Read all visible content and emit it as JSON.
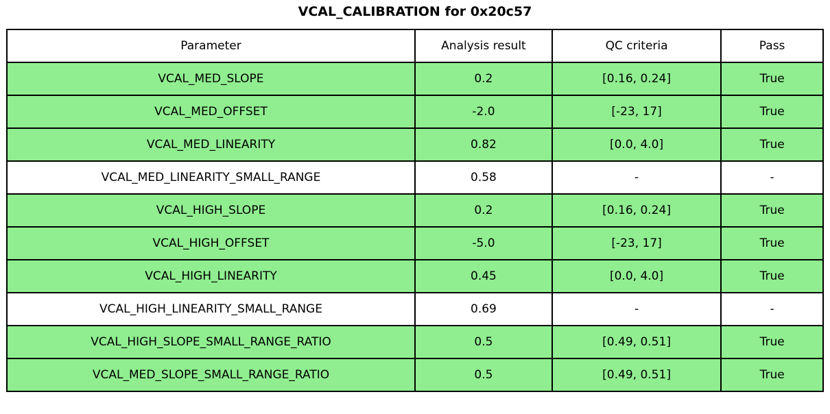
{
  "title": "VCAL_CALIBRATION for 0x20c57",
  "colors": {
    "pass_row_bg": "#90EE90",
    "neutral_row_bg": "#ffffff",
    "border": "#000000"
  },
  "table": {
    "columns": [
      "Parameter",
      "Analysis result",
      "QC criteria",
      "Pass"
    ],
    "rows": [
      {
        "parameter": "VCAL_MED_SLOPE",
        "result": "0.2",
        "criteria": "[0.16, 0.24]",
        "pass": "True",
        "highlight": true
      },
      {
        "parameter": "VCAL_MED_OFFSET",
        "result": "-2.0",
        "criteria": "[-23, 17]",
        "pass": "True",
        "highlight": true
      },
      {
        "parameter": "VCAL_MED_LINEARITY",
        "result": "0.82",
        "criteria": "[0.0, 4.0]",
        "pass": "True",
        "highlight": true
      },
      {
        "parameter": "VCAL_MED_LINEARITY_SMALL_RANGE",
        "result": "0.58",
        "criteria": "-",
        "pass": "-",
        "highlight": false
      },
      {
        "parameter": "VCAL_HIGH_SLOPE",
        "result": "0.2",
        "criteria": "[0.16, 0.24]",
        "pass": "True",
        "highlight": true
      },
      {
        "parameter": "VCAL_HIGH_OFFSET",
        "result": "-5.0",
        "criteria": "[-23, 17]",
        "pass": "True",
        "highlight": true
      },
      {
        "parameter": "VCAL_HIGH_LINEARITY",
        "result": "0.45",
        "criteria": "[0.0, 4.0]",
        "pass": "True",
        "highlight": true
      },
      {
        "parameter": "VCAL_HIGH_LINEARITY_SMALL_RANGE",
        "result": "0.69",
        "criteria": "-",
        "pass": "-",
        "highlight": false
      },
      {
        "parameter": "VCAL_HIGH_SLOPE_SMALL_RANGE_RATIO",
        "result": "0.5",
        "criteria": "[0.49, 0.51]",
        "pass": "True",
        "highlight": true
      },
      {
        "parameter": "VCAL_MED_SLOPE_SMALL_RANGE_RATIO",
        "result": "0.5",
        "criteria": "[0.49, 0.51]",
        "pass": "True",
        "highlight": true
      }
    ]
  },
  "chart_data": {
    "type": "table",
    "title": "VCAL_CALIBRATION for 0x20c57",
    "columns": [
      "Parameter",
      "Analysis result",
      "QC criteria",
      "Pass"
    ],
    "rows": [
      [
        "VCAL_MED_SLOPE",
        "0.2",
        "[0.16, 0.24]",
        "True"
      ],
      [
        "VCAL_MED_OFFSET",
        "-2.0",
        "[-23, 17]",
        "True"
      ],
      [
        "VCAL_MED_LINEARITY",
        "0.82",
        "[0.0, 4.0]",
        "True"
      ],
      [
        "VCAL_MED_LINEARITY_SMALL_RANGE",
        "0.58",
        "-",
        "-"
      ],
      [
        "VCAL_HIGH_SLOPE",
        "0.2",
        "[0.16, 0.24]",
        "True"
      ],
      [
        "VCAL_HIGH_OFFSET",
        "-5.0",
        "[-23, 17]",
        "True"
      ],
      [
        "VCAL_HIGH_LINEARITY",
        "0.45",
        "[0.0, 4.0]",
        "True"
      ],
      [
        "VCAL_HIGH_LINEARITY_SMALL_RANGE",
        "0.69",
        "-",
        "-"
      ],
      [
        "VCAL_HIGH_SLOPE_SMALL_RANGE_RATIO",
        "0.5",
        "[0.49, 0.51]",
        "True"
      ],
      [
        "VCAL_MED_SLOPE_SMALL_RANGE_RATIO",
        "0.5",
        "[0.49, 0.51]",
        "True"
      ]
    ],
    "row_pass_highlight": [
      true,
      true,
      true,
      false,
      true,
      true,
      true,
      false,
      true,
      true
    ],
    "layout": {
      "header_bg": "#ffffff",
      "pass_bg": "#90EE90",
      "grid": true
    }
  }
}
